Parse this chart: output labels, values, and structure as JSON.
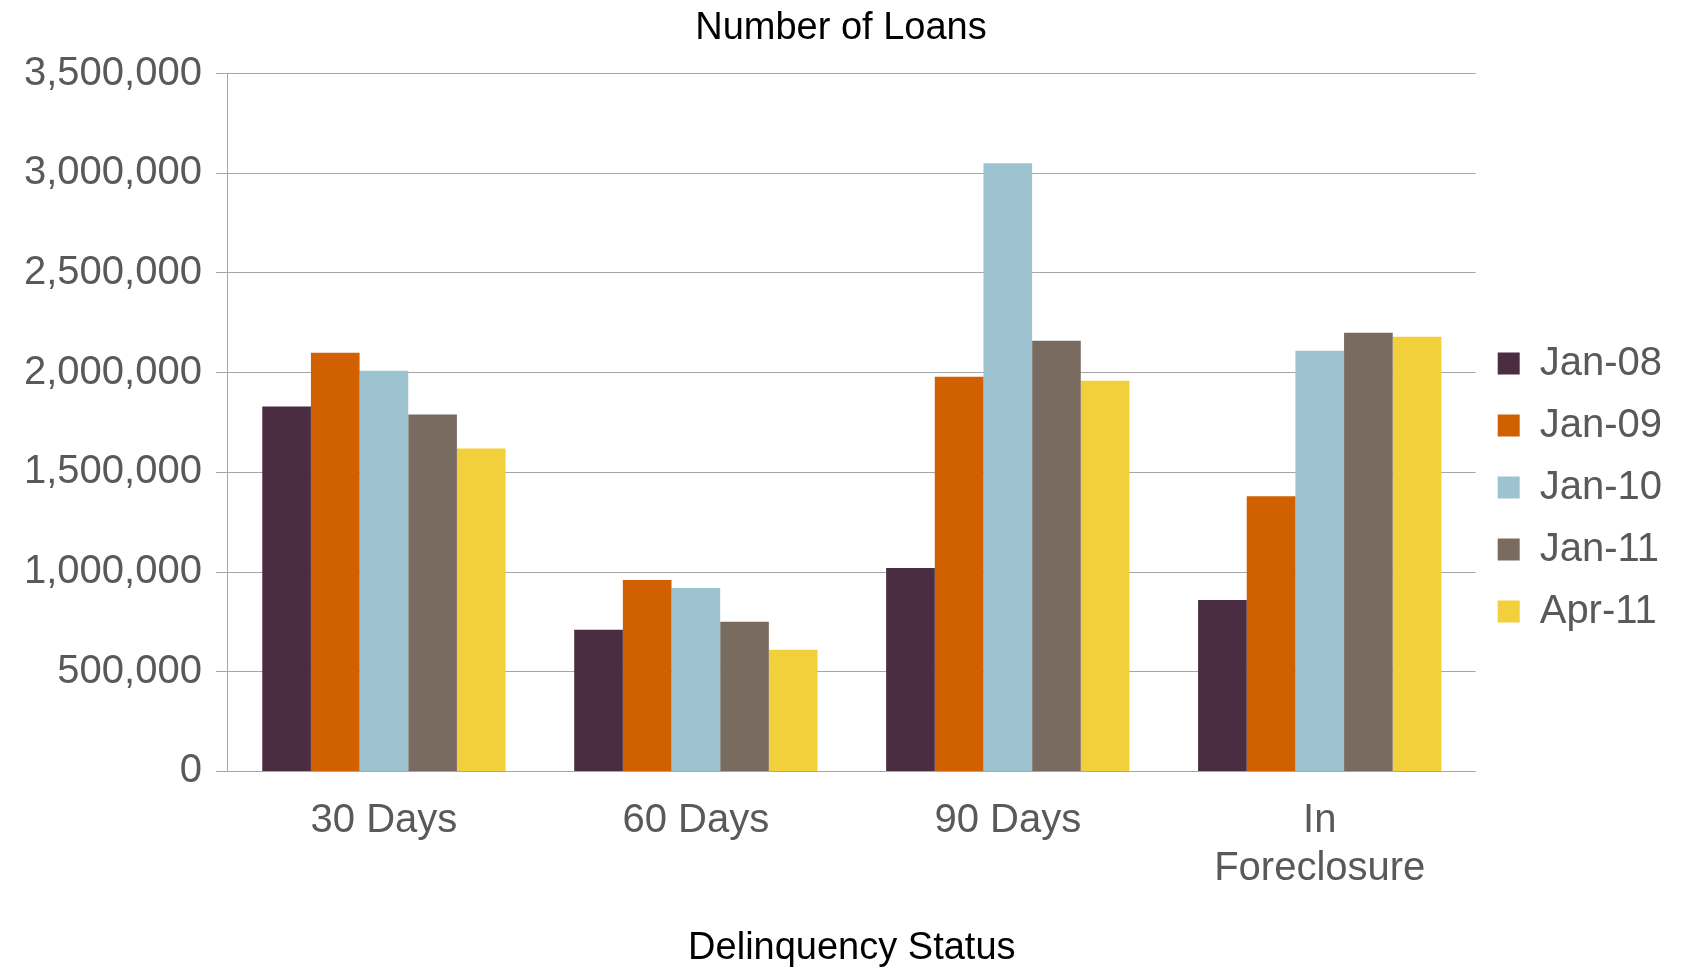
{
  "chart_data": {
    "type": "bar",
    "title": "Number of Loans",
    "xlabel": "Delinquency Status",
    "categories": [
      "30 Days",
      "60 Days",
      "90 Days",
      "In Foreclosure"
    ],
    "series": [
      {
        "name": "Jan-08",
        "color": "#4b2d42",
        "values": [
          1830000,
          710000,
          1020000,
          860000
        ]
      },
      {
        "name": "Jan-09",
        "color": "#d06000",
        "values": [
          2100000,
          960000,
          1980000,
          1380000
        ]
      },
      {
        "name": "Jan-10",
        "color": "#9ec3d0",
        "values": [
          2010000,
          920000,
          3050000,
          2110000
        ]
      },
      {
        "name": "Jan-11",
        "color": "#7a6b61",
        "values": [
          1790000,
          750000,
          2160000,
          2200000
        ]
      },
      {
        "name": "Apr-11",
        "color": "#f2d03b",
        "values": [
          1620000,
          610000,
          1960000,
          2180000
        ]
      }
    ],
    "ylim": [
      0,
      3500000
    ],
    "yticks": [
      0,
      {
        "value": 500000,
        "label": "500,000"
      },
      {
        "value": 1000000,
        "label": "1,000,000"
      },
      {
        "value": 1500000,
        "label": "1,500,000"
      },
      {
        "value": 2000000,
        "label": "2,000,000"
      },
      {
        "value": 2500000,
        "label": "2,500,000"
      },
      {
        "value": 3000000,
        "label": "3,000,000"
      },
      {
        "value": 3500000,
        "label": "3,500,000"
      }
    ],
    "grid": "y",
    "legend": "right"
  }
}
